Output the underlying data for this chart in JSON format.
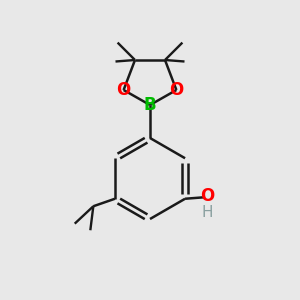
{
  "bg_color": "#e8e8e8",
  "bond_color": "#1a1a1a",
  "B_color": "#00bb00",
  "O_color": "#ff0000",
  "H_color": "#8aa0a0",
  "line_width": 1.8,
  "figsize": [
    3.0,
    3.0
  ],
  "dpi": 100,
  "xlim": [
    0,
    10
  ],
  "ylim": [
    0,
    10
  ]
}
